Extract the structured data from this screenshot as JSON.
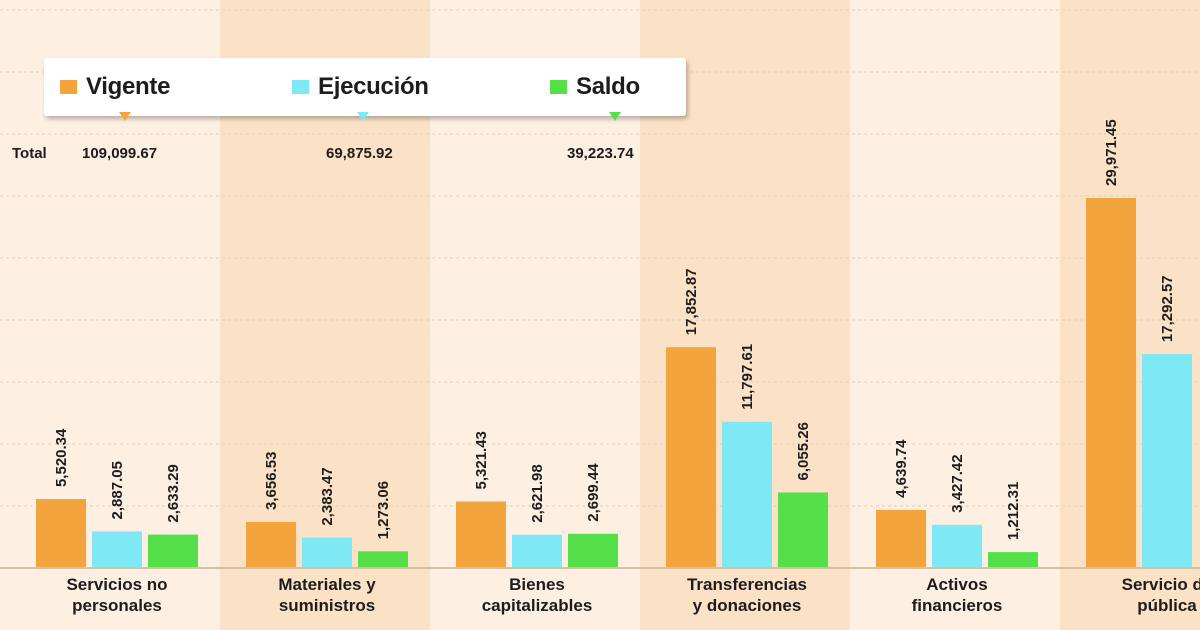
{
  "legend": {
    "items": [
      {
        "label": "Vigente",
        "color": "#f4a43c"
      },
      {
        "label": "Ejecución",
        "color": "#7ee9f4"
      },
      {
        "label": "Saldo",
        "color": "#55e049"
      }
    ]
  },
  "totals": {
    "label": "Total",
    "vigente": "109,099.67",
    "ejecucion": "69,875.92",
    "saldo": "39,223.74"
  },
  "chart_data": {
    "type": "bar",
    "categories": [
      [
        "Servicios  no",
        "personales"
      ],
      [
        "Materiales y",
        "suministros"
      ],
      [
        "Bienes",
        "capitalizables"
      ],
      [
        "Transferencias",
        "y donaciones"
      ],
      [
        "Activos",
        "financieros"
      ],
      [
        "Servicio de",
        "pública"
      ]
    ],
    "series": [
      {
        "name": "Vigente",
        "color": "#f4a43c",
        "values": [
          5520.34,
          3656.53,
          5321.43,
          17852.87,
          4639.74,
          29971.45
        ]
      },
      {
        "name": "Ejecución",
        "color": "#7ee9f4",
        "values": [
          2887.05,
          2383.47,
          2621.98,
          11797.61,
          3427.42,
          17292.57
        ]
      },
      {
        "name": "Saldo",
        "color": "#55e049",
        "values": [
          2633.29,
          1273.06,
          2699.44,
          6055.26,
          1212.31,
          null
        ]
      }
    ],
    "data_labels": [
      [
        "5,520.34",
        "2,887.05",
        "2,633.29"
      ],
      [
        "3,656.53",
        "2,383.47",
        "1,273.06"
      ],
      [
        "5,321.43",
        "2,621.98",
        "2,699.44"
      ],
      [
        "17,852.87",
        "11,797.61",
        "6,055.26"
      ],
      [
        "4,639.74",
        "3,427.42",
        "1,212.31"
      ],
      [
        "29,971.45",
        "17,292.57",
        ""
      ]
    ],
    "ylim": [
      0,
      30000
    ],
    "grid": true,
    "legend_position": "top-left"
  }
}
